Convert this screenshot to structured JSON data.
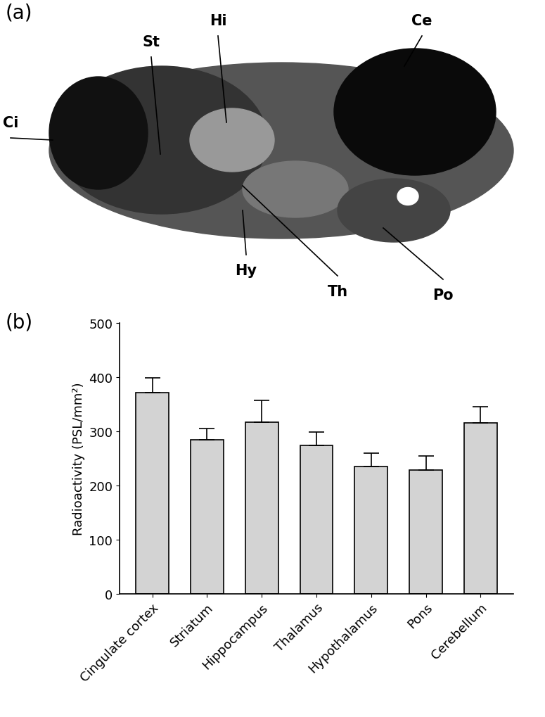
{
  "chart_data": {
    "type": "bar",
    "categories": [
      "Cingulate cortex",
      "Striatum",
      "Hippocampus",
      "Thalamus",
      "Hypothalamus",
      "Pons",
      "Cerebellum"
    ],
    "values": [
      372,
      285,
      317,
      274,
      235,
      229,
      316
    ],
    "errors": [
      27,
      20,
      40,
      25,
      25,
      25,
      30
    ],
    "color": "#d3d3d3",
    "y_label": "Radioactivity (PSL/mm²)",
    "ylim": [
      0,
      500
    ],
    "yticks": [
      0,
      100,
      200,
      300,
      400,
      500
    ],
    "grid": false
  },
  "panel_labels": [
    "(a)",
    "(b)"
  ],
  "image_labels": [
    "Ci",
    "St",
    "Hi",
    "Ce",
    "Hy",
    "Th",
    "Po"
  ]
}
